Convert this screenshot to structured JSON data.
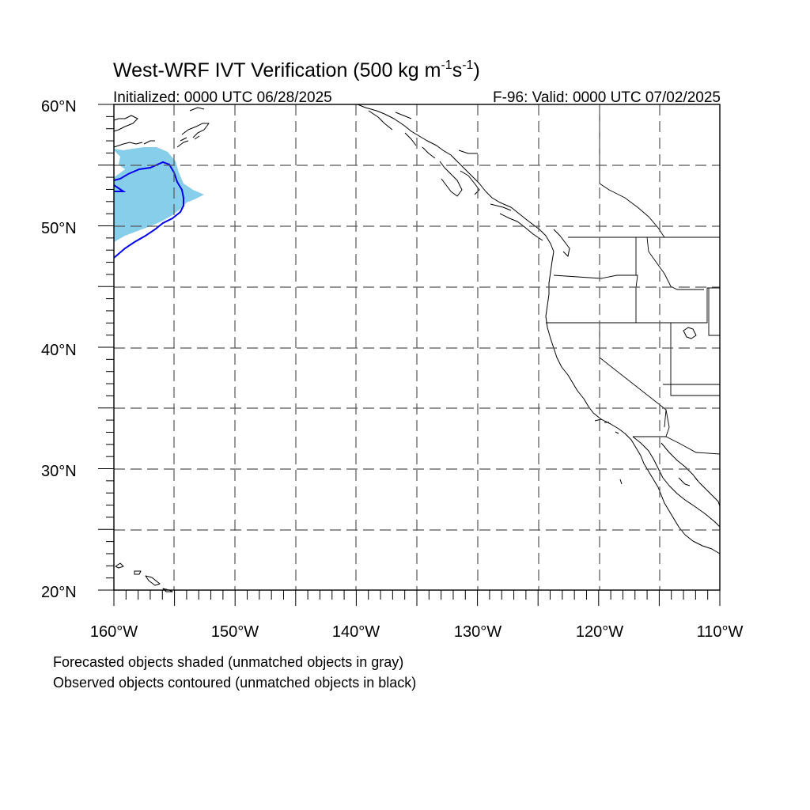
{
  "title": {
    "main": "West-WRF IVT Verification (500 kg m",
    "exp1": "-1",
    "mid": "s",
    "exp2": "-1",
    "close": ")"
  },
  "initialized": "Initialized: 0000 UTC 06/28/2025",
  "valid": "F-96: Valid: 0000 UTC 07/02/2025",
  "lat_labels": [
    "60°N",
    "50°N",
    "40°N",
    "30°N",
    "20°N"
  ],
  "lon_labels": [
    "160°W",
    "150°W",
    "140°W",
    "130°W",
    "120°W",
    "110°W"
  ],
  "caption": {
    "line1": "Forecasted objects shaded (unmatched objects in gray)",
    "line2": "Observed objects contoured (unmatched objects in black)"
  },
  "extent": {
    "lon": [
      -160,
      -110
    ],
    "lat": [
      20,
      60
    ]
  },
  "colors": {
    "forecast_shade": "#87ceeb",
    "observed_contour": "#0000ee"
  }
}
